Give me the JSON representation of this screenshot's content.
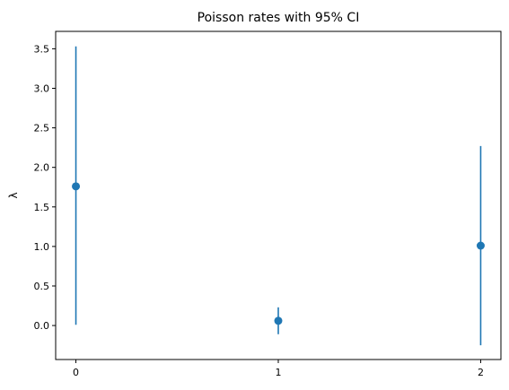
{
  "chart_data": {
    "type": "scatter",
    "title": "Poisson rates with 95% CI",
    "xlabel": "",
    "ylabel": "λ",
    "x": [
      0,
      1,
      2
    ],
    "values": [
      1.76,
      0.06,
      1.01
    ],
    "ci_lower": [
      0.01,
      -0.11,
      -0.25
    ],
    "ci_upper": [
      3.53,
      0.23,
      2.27
    ],
    "xlim": [
      -0.1,
      2.1
    ],
    "ylim": [
      -0.43,
      3.72
    ],
    "x_ticks": [
      "0",
      "1",
      "2"
    ],
    "y_ticks": [
      "0.0",
      "0.5",
      "1.0",
      "1.5",
      "2.0",
      "2.5",
      "3.0",
      "3.5"
    ],
    "grid": false,
    "legend": "none",
    "color": "#1f77b4"
  }
}
